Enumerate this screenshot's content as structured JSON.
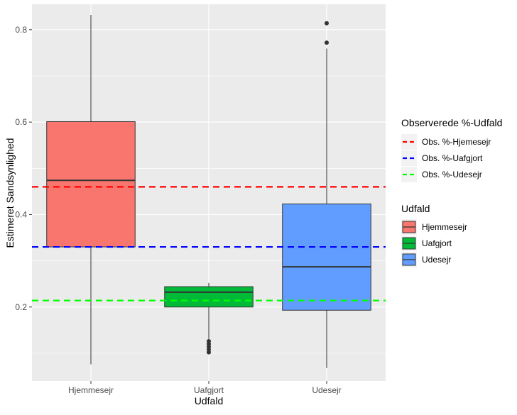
{
  "chart_data": {
    "type": "boxplot",
    "xlabel": "Udfald",
    "ylabel": "Estimeret Sandsynlighed",
    "categories": [
      "Hjemmesejr",
      "Uafgjort",
      "Udesejr"
    ],
    "ylim": [
      0.04,
      0.855
    ],
    "yticks": [
      0.2,
      0.4,
      0.6,
      0.8
    ],
    "ytick_labels": [
      "0.2",
      "0.4",
      "0.6",
      "0.8"
    ],
    "grid": true,
    "boxes": [
      {
        "category": "Hjemmesejr",
        "min": 0.076,
        "q1": 0.33,
        "median": 0.474,
        "q3": 0.601,
        "max": 0.832,
        "outliers": [],
        "color": "#F8766D"
      },
      {
        "category": "Uafgjort",
        "min": 0.131,
        "q1": 0.2,
        "median": 0.232,
        "q3": 0.244,
        "max": 0.252,
        "outliers": [
          0.126,
          0.12,
          0.114,
          0.108,
          0.102
        ],
        "color": "#00BA38"
      },
      {
        "category": "Udesejr",
        "min": 0.068,
        "q1": 0.193,
        "median": 0.287,
        "q3": 0.423,
        "max": 0.759,
        "outliers": [
          0.772,
          0.814
        ],
        "color": "#619CFF"
      }
    ],
    "reference_lines": [
      {
        "name": "Obs. %-Hjemesejr",
        "value": 0.46,
        "color": "#FF0000"
      },
      {
        "name": "Obs. %-Uafgjort",
        "value": 0.33,
        "color": "#0000FF"
      },
      {
        "name": "Obs. %-Udesejr",
        "value": 0.214,
        "color": "#00FF00"
      }
    ],
    "legends": [
      {
        "title": "Observerede %-Udfald",
        "entries": [
          "Obs. %-Hjemesejr",
          "Obs. %-Uafgjort",
          "Obs. %-Udesejr"
        ]
      },
      {
        "title": "Udfald",
        "entries": [
          "Hjemmesejr",
          "Uafgjort",
          "Udesejr"
        ]
      }
    ],
    "legend_position": "right"
  }
}
